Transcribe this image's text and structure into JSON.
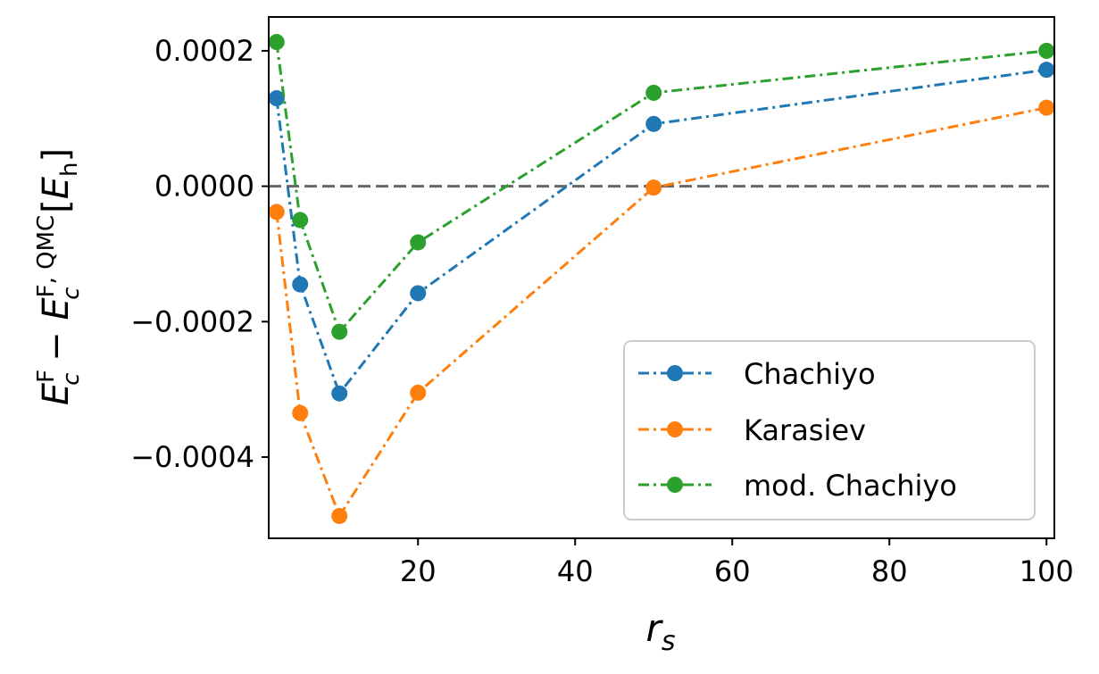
{
  "chart_data": {
    "type": "line",
    "xlabel": "r_s",
    "ylabel": "E_c^F − E_c^{F, QMC} [E_h]",
    "xlim": [
      1,
      101
    ],
    "ylim": [
      -0.00052,
      0.00025
    ],
    "x_ticks": [
      20,
      40,
      60,
      80,
      100
    ],
    "x_tick_labels": [
      "20",
      "40",
      "60",
      "80",
      "100"
    ],
    "y_ticks": [
      0.0002,
      0.0,
      -0.0002,
      -0.0004
    ],
    "y_tick_labels": [
      "0.0002",
      "0.0000",
      "−0.0002",
      "−0.0004"
    ],
    "reference_line": {
      "y": 0.0,
      "style": "dashed",
      "color": "#666666"
    },
    "line_style": "dash-dot",
    "marker": "circle",
    "legend_position": "lower right",
    "x": [
      2,
      5,
      10,
      20,
      50,
      100
    ],
    "series": [
      {
        "name": "Chachiyo",
        "color": "#1f77b4",
        "values": [
          0.00013,
          -0.000145,
          -0.000306,
          -0.000158,
          9.2e-05,
          0.000172
        ]
      },
      {
        "name": "Karasiev",
        "color": "#ff7f0e",
        "values": [
          -3.8e-05,
          -0.000335,
          -0.000487,
          -0.000305,
          -2e-06,
          0.000116
        ]
      },
      {
        "name": "mod. Chachiyo",
        "color": "#2ca02c",
        "values": [
          0.000213,
          -5e-05,
          -0.000215,
          -8.3e-05,
          0.000138,
          0.0002
        ]
      }
    ]
  },
  "labels": {
    "xlabel_base": "r",
    "xlabel_sub": "s",
    "ylabel_E1": "E",
    "ylabel_c1": "c",
    "ylabel_sup1": "F",
    "ylabel_minus": " − ",
    "ylabel_E2": "E",
    "ylabel_c2": "c",
    "ylabel_sup2": "F, QMC",
    "ylabel_unit_open": " [",
    "ylabel_unit_E": "E",
    "ylabel_unit_sub": "h",
    "ylabel_unit_close": "]"
  }
}
